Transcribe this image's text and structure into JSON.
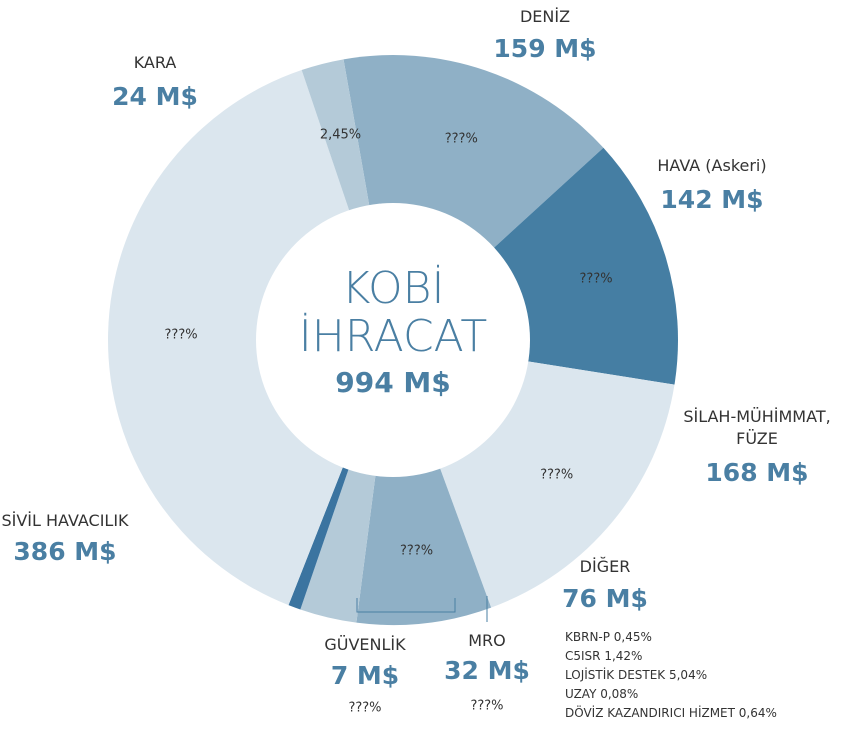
{
  "chart_data": {
    "type": "donut",
    "center_title": "KOBİ İHRACAT",
    "total": 994,
    "total_label": "994 M$",
    "categories": [
      "DENİZ",
      "HAVA (Askeri)",
      "SİLAH-MÜHİMMAT, FÜZE",
      "DİĞER",
      "MRO",
      "GÜVENLİK",
      "SİVİL HAVACILIK",
      "KARA"
    ],
    "values": [
      159,
      142,
      168,
      76,
      32,
      7,
      386,
      24
    ],
    "value_labels": [
      "159 M$",
      "142 M$",
      "168 M$",
      "76 M$",
      "32 M$",
      "7 M$",
      "386 M$",
      "24 M$"
    ],
    "percent_labels": [
      "???%",
      "???%",
      "???%",
      "???%",
      "???%",
      "???%",
      "???%",
      "2,45%"
    ],
    "colors": [
      "#8fb0c6",
      "#457ea3",
      "#dbe6ee",
      "#8fb0c6",
      "#b4cad8",
      "#3b74a0",
      "#dbe6ee",
      "#b4cad8"
    ],
    "other_details": [
      "KBRN-P 0,45%",
      "C5ISR 1,42%",
      "LOJİSTİK DESTEK 5,04%",
      "UZAY 0,08%",
      "DÖVİZ KAZANDIRICI HİZMET 0,64%"
    ]
  }
}
